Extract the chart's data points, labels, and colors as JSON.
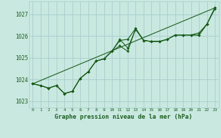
{
  "title": "Graphe pression niveau de la mer (hPa)",
  "ylim": [
    1022.7,
    1027.6
  ],
  "xlim": [
    -0.5,
    23.5
  ],
  "yticks": [
    1023,
    1024,
    1025,
    1026,
    1027
  ],
  "xticks": [
    0,
    1,
    2,
    3,
    4,
    5,
    6,
    7,
    8,
    9,
    10,
    11,
    12,
    13,
    14,
    15,
    16,
    17,
    18,
    19,
    20,
    21,
    22,
    23
  ],
  "background_color": "#c8e8e0",
  "grid_color": "#a8cccc",
  "line_color": "#1a5c1a",
  "line1": [
    1023.8,
    1023.72,
    1023.6,
    1023.72,
    1023.35,
    1023.45,
    1024.05,
    1024.35,
    1024.85,
    1024.95,
    1025.3,
    1025.8,
    1025.85,
    1026.35,
    1025.8,
    1025.75,
    1025.75,
    1025.85,
    1026.05,
    1026.05,
    1026.05,
    1026.05,
    1026.55,
    1027.25
  ],
  "line2": [
    1023.8,
    1023.72,
    1023.6,
    1023.72,
    1023.35,
    1023.45,
    1024.05,
    1024.35,
    1024.85,
    1024.95,
    1025.3,
    1025.55,
    1025.3,
    1026.35,
    1025.8,
    1025.75,
    1025.75,
    1025.85,
    1026.05,
    1026.05,
    1026.05,
    1026.15,
    1026.55,
    1027.3
  ],
  "line3": [
    1023.8,
    1023.72,
    1023.6,
    1023.72,
    1023.35,
    1023.45,
    1024.05,
    1024.35,
    1024.85,
    1024.95,
    1025.3,
    1025.85,
    1025.45,
    1026.3,
    1025.8,
    1025.75,
    1025.75,
    1025.85,
    1026.05,
    1026.05,
    1026.05,
    1026.05,
    1026.55,
    1027.3
  ],
  "trend_x": [
    0,
    23
  ],
  "trend_y": [
    1023.8,
    1027.3
  ]
}
